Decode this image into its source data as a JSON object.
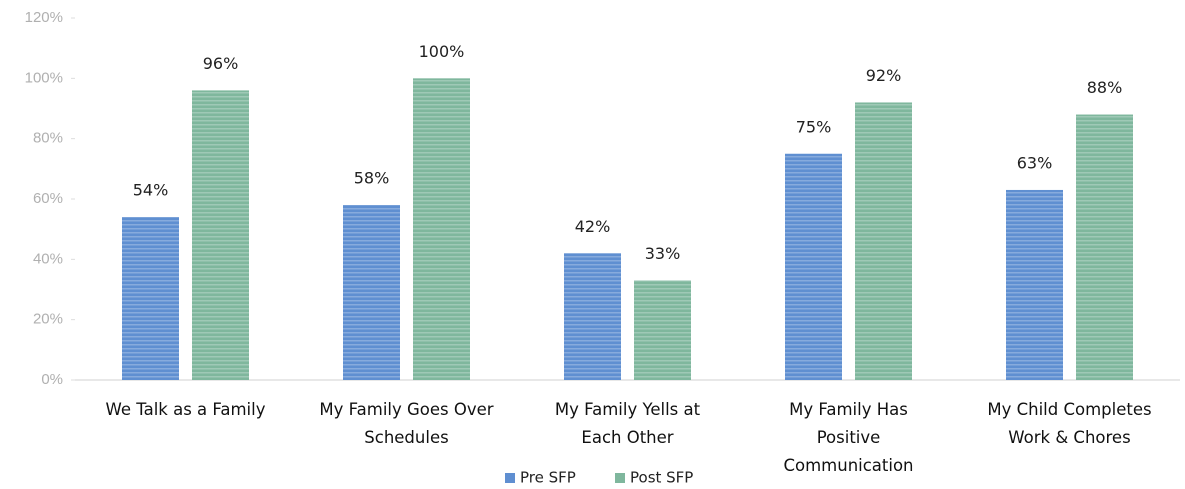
{
  "chart_data": {
    "type": "bar",
    "categories": [
      "We Talk as a Family",
      "My Family Goes Over\nSchedules",
      "My Family Yells at\nEach Other",
      "My Family Has\nPositive\nCommunication",
      "My Child Completes\nWork & Chores"
    ],
    "series": [
      {
        "name": "Pre SFP",
        "color": "#5f8fd1",
        "values": [
          54,
          58,
          42,
          75,
          63
        ],
        "value_labels": [
          "54%",
          "58%",
          "42%",
          "75%",
          "63%"
        ]
      },
      {
        "name": "Post SFP",
        "color": "#7fb79d",
        "values": [
          96,
          100,
          33,
          92,
          88
        ],
        "value_labels": [
          "96%",
          "100%",
          "33%",
          "92%",
          "88%"
        ]
      }
    ],
    "ylim": [
      0,
      120
    ],
    "yticks": [
      {
        "value": 0,
        "label": "0%"
      },
      {
        "value": 20,
        "label": "20%"
      },
      {
        "value": 40,
        "label": "40%"
      },
      {
        "value": 60,
        "label": "60%"
      },
      {
        "value": 80,
        "label": "80%"
      },
      {
        "value": 100,
        "label": "100%"
      },
      {
        "value": 120,
        "label": "120%"
      }
    ],
    "legend": "bottom"
  }
}
